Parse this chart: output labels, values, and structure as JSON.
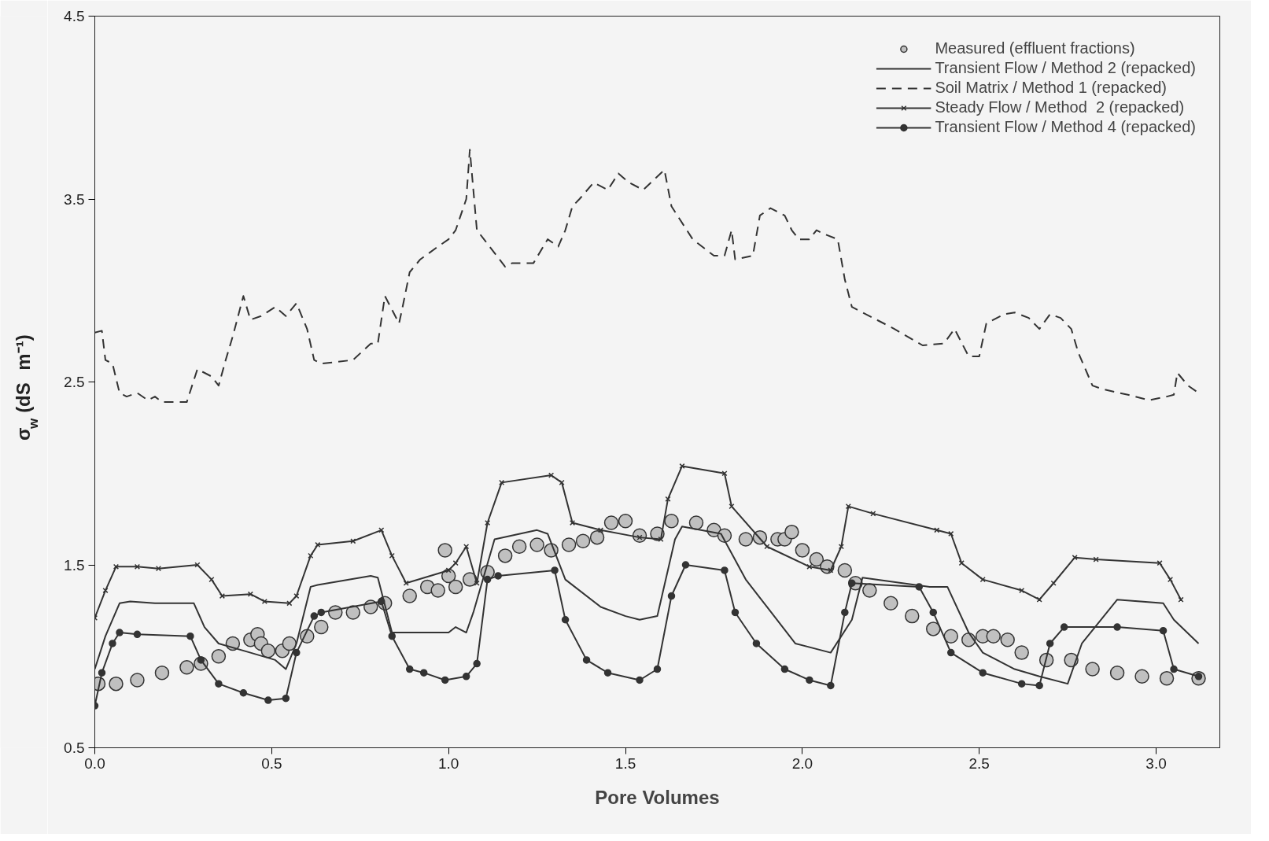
{
  "chart_data": {
    "type": "line",
    "xlabel": "Pore Volumes",
    "ylabel": "σ$_{w}$ (dS m⁻¹)",
    "xlim": [
      0,
      3.18
    ],
    "ylim": [
      0.5,
      4.5
    ],
    "xticks": [
      {
        "value": 0,
        "label": "0.0"
      },
      0.5,
      {
        "value": 1,
        "label": "1.0"
      },
      1.5,
      {
        "value": 2,
        "label": "2.0"
      },
      2.5,
      {
        "value": 3,
        "label": "3.0"
      }
    ],
    "yticks": [
      0.5,
      1.5,
      2.5,
      3.5,
      4.5
    ],
    "grid": false,
    "legend": "top right",
    "series": [
      {
        "name": "Measured (effluent fractions)",
        "type": "scatter",
        "marker": "circle",
        "color": "#c0c0c0",
        "x": [
          0.01,
          0.06,
          0.12,
          0.19,
          0.26,
          0.3,
          0.35,
          0.39,
          0.44,
          0.46,
          0.47,
          0.49,
          0.53,
          0.55,
          0.6,
          0.64,
          0.68,
          0.73,
          0.78,
          0.82,
          0.89,
          0.94,
          0.97,
          0.99,
          1.0,
          1.02,
          1.06,
          1.11,
          1.16,
          1.2,
          1.25,
          1.29,
          1.34,
          1.38,
          1.42,
          1.46,
          1.5,
          1.54,
          1.59,
          1.63,
          1.7,
          1.75,
          1.78,
          1.84,
          1.88,
          1.93,
          1.95,
          1.97,
          2.0,
          2.04,
          2.07,
          2.12,
          2.15,
          2.19,
          2.25,
          2.31,
          2.37,
          2.42,
          2.47,
          2.51,
          2.54,
          2.58,
          2.62,
          2.69,
          2.76,
          2.82,
          2.89,
          2.96,
          3.03,
          3.12
        ],
        "values": [
          0.85,
          0.85,
          0.87,
          0.91,
          0.94,
          0.96,
          1.0,
          1.07,
          1.09,
          1.12,
          1.07,
          1.03,
          1.03,
          1.07,
          1.11,
          1.16,
          1.24,
          1.24,
          1.27,
          1.29,
          1.33,
          1.38,
          1.36,
          1.58,
          1.44,
          1.38,
          1.42,
          1.46,
          1.55,
          1.6,
          1.61,
          1.58,
          1.61,
          1.63,
          1.65,
          1.73,
          1.74,
          1.66,
          1.67,
          1.74,
          1.73,
          1.69,
          1.66,
          1.64,
          1.65,
          1.64,
          1.64,
          1.68,
          1.58,
          1.53,
          1.49,
          1.47,
          1.4,
          1.36,
          1.29,
          1.22,
          1.15,
          1.11,
          1.09,
          1.11,
          1.11,
          1.09,
          1.02,
          0.98,
          0.98,
          0.93,
          0.91,
          0.89,
          0.88,
          0.88
        ]
      },
      {
        "name": "Transient Flow / Method 2 (repacked)",
        "type": "line",
        "marker": "none",
        "line_style": "solid",
        "color": "#333333",
        "x": [
          0,
          0.03,
          0.07,
          0.1,
          0.17,
          0.28,
          0.31,
          0.35,
          0.44,
          0.51,
          0.54,
          0.57,
          0.61,
          0.63,
          0.78,
          0.8,
          0.84,
          0.9,
          1.0,
          1.02,
          1.05,
          1.07,
          1.13,
          1.25,
          1.28,
          1.33,
          1.43,
          1.5,
          1.54,
          1.59,
          1.64,
          1.66,
          1.77,
          1.84,
          1.9,
          1.98,
          2.08,
          2.14,
          2.14,
          2.17,
          2.36,
          2.41,
          2.47,
          2.51,
          2.6,
          2.67,
          2.75,
          2.79,
          2.89,
          3.02,
          3.05,
          3.12
        ],
        "values": [
          0.93,
          1.11,
          1.29,
          1.3,
          1.29,
          1.29,
          1.16,
          1.07,
          1.02,
          0.98,
          0.93,
          1.07,
          1.38,
          1.39,
          1.44,
          1.43,
          1.13,
          1.13,
          1.13,
          1.16,
          1.13,
          1.24,
          1.64,
          1.69,
          1.67,
          1.42,
          1.27,
          1.22,
          1.2,
          1.22,
          1.64,
          1.71,
          1.67,
          1.42,
          1.27,
          1.07,
          1.02,
          1.2,
          1.2,
          1.43,
          1.38,
          1.38,
          1.13,
          1.02,
          0.93,
          0.89,
          0.85,
          1.07,
          1.31,
          1.29,
          1.2,
          1.07
        ]
      },
      {
        "name": "Soil Matrix / Method 1 (repacked)",
        "type": "line",
        "marker": "none",
        "line_style": "dashed",
        "color": "#333333",
        "x": [
          0,
          0.02,
          0.03,
          0.05,
          0.07,
          0.09,
          0.12,
          0.15,
          0.17,
          0.19,
          0.26,
          0.29,
          0.33,
          0.35,
          0.37,
          0.39,
          0.42,
          0.44,
          0.47,
          0.51,
          0.54,
          0.57,
          0.6,
          0.62,
          0.64,
          0.73,
          0.78,
          0.8,
          0.82,
          0.86,
          0.87,
          0.89,
          0.92,
          0.97,
          1.0,
          1.02,
          1.05,
          1.06,
          1.08,
          1.1,
          1.16,
          1.18,
          1.24,
          1.28,
          1.31,
          1.33,
          1.35,
          1.37,
          1.41,
          1.45,
          1.48,
          1.51,
          1.55,
          1.61,
          1.63,
          1.69,
          1.75,
          1.78,
          1.8,
          1.81,
          1.86,
          1.88,
          1.91,
          1.95,
          1.97,
          1.99,
          2.02,
          2.04,
          2.06,
          2.1,
          2.12,
          2.14,
          2.19,
          2.26,
          2.34,
          2.4,
          2.43,
          2.47,
          2.5,
          2.52,
          2.57,
          2.6,
          2.64,
          2.67,
          2.7,
          2.73,
          2.76,
          2.78,
          2.82,
          2.85,
          2.92,
          2.98,
          3.03,
          3.05,
          3.06,
          3.09,
          3.12
        ],
        "values": [
          2.77,
          2.78,
          2.62,
          2.6,
          2.44,
          2.42,
          2.44,
          2.4,
          2.42,
          2.39,
          2.39,
          2.57,
          2.53,
          2.48,
          2.62,
          2.75,
          2.97,
          2.84,
          2.86,
          2.91,
          2.86,
          2.93,
          2.79,
          2.62,
          2.6,
          2.62,
          2.71,
          2.71,
          2.97,
          2.82,
          2.91,
          3.1,
          3.17,
          3.24,
          3.28,
          3.33,
          3.5,
          3.77,
          3.33,
          3.28,
          3.13,
          3.15,
          3.15,
          3.28,
          3.24,
          3.33,
          3.46,
          3.5,
          3.59,
          3.55,
          3.64,
          3.59,
          3.55,
          3.66,
          3.46,
          3.28,
          3.19,
          3.19,
          3.33,
          3.17,
          3.19,
          3.41,
          3.45,
          3.41,
          3.33,
          3.28,
          3.28,
          3.33,
          3.31,
          3.28,
          3.06,
          2.91,
          2.86,
          2.79,
          2.7,
          2.71,
          2.79,
          2.64,
          2.64,
          2.82,
          2.87,
          2.88,
          2.85,
          2.79,
          2.87,
          2.85,
          2.79,
          2.66,
          2.48,
          2.46,
          2.43,
          2.4,
          2.42,
          2.43,
          2.55,
          2.48,
          2.44
        ]
      },
      {
        "name": "Steady Flow / Method  2 (repacked)",
        "type": "line",
        "marker": "cross",
        "line_style": "solid",
        "color": "#333333",
        "x": [
          0,
          0.03,
          0.06,
          0.12,
          0.18,
          0.29,
          0.33,
          0.36,
          0.44,
          0.48,
          0.55,
          0.57,
          0.61,
          0.63,
          0.73,
          0.81,
          0.84,
          0.88,
          1.0,
          1.02,
          1.05,
          1.08,
          1.11,
          1.15,
          1.29,
          1.32,
          1.35,
          1.43,
          1.54,
          1.6,
          1.62,
          1.66,
          1.78,
          1.8,
          1.9,
          2.02,
          2.08,
          2.11,
          2.13,
          2.2,
          2.38,
          2.42,
          2.45,
          2.51,
          2.62,
          2.67,
          2.71,
          2.77,
          2.83,
          3.01,
          3.04,
          3.07
        ],
        "values": [
          1.21,
          1.36,
          1.49,
          1.49,
          1.48,
          1.5,
          1.42,
          1.33,
          1.34,
          1.3,
          1.29,
          1.33,
          1.55,
          1.61,
          1.63,
          1.69,
          1.55,
          1.4,
          1.47,
          1.51,
          1.6,
          1.4,
          1.73,
          1.95,
          1.99,
          1.95,
          1.73,
          1.69,
          1.65,
          1.64,
          1.86,
          2.04,
          2.0,
          1.82,
          1.6,
          1.49,
          1.47,
          1.6,
          1.82,
          1.78,
          1.69,
          1.67,
          1.51,
          1.42,
          1.36,
          1.31,
          1.4,
          1.54,
          1.53,
          1.51,
          1.42,
          1.31
        ]
      },
      {
        "name": "Transient Flow / Method 4 (repacked)",
        "type": "line",
        "marker": "circle",
        "line_style": "solid",
        "color": "#333333",
        "x": [
          0,
          0.02,
          0.05,
          0.07,
          0.12,
          0.27,
          0.3,
          0.35,
          0.42,
          0.49,
          0.54,
          0.57,
          0.62,
          0.64,
          0.81,
          0.84,
          0.89,
          0.93,
          0.99,
          1.05,
          1.08,
          1.11,
          1.14,
          1.3,
          1.33,
          1.39,
          1.45,
          1.54,
          1.59,
          1.63,
          1.67,
          1.78,
          1.81,
          1.87,
          1.95,
          2.02,
          2.08,
          2.12,
          2.14,
          2.33,
          2.37,
          2.42,
          2.51,
          2.62,
          2.67,
          2.7,
          2.74,
          2.89,
          3.02,
          3.05,
          3.12
        ],
        "values": [
          0.73,
          0.91,
          1.07,
          1.13,
          1.12,
          1.11,
          0.98,
          0.85,
          0.8,
          0.76,
          0.77,
          1.02,
          1.22,
          1.24,
          1.3,
          1.11,
          0.93,
          0.91,
          0.87,
          0.89,
          0.96,
          1.42,
          1.44,
          1.47,
          1.2,
          0.98,
          0.91,
          0.87,
          0.93,
          1.33,
          1.5,
          1.47,
          1.24,
          1.07,
          0.93,
          0.87,
          0.84,
          1.24,
          1.4,
          1.38,
          1.24,
          1.02,
          0.91,
          0.85,
          0.84,
          1.07,
          1.16,
          1.16,
          1.14,
          0.93,
          0.89
        ]
      }
    ]
  }
}
